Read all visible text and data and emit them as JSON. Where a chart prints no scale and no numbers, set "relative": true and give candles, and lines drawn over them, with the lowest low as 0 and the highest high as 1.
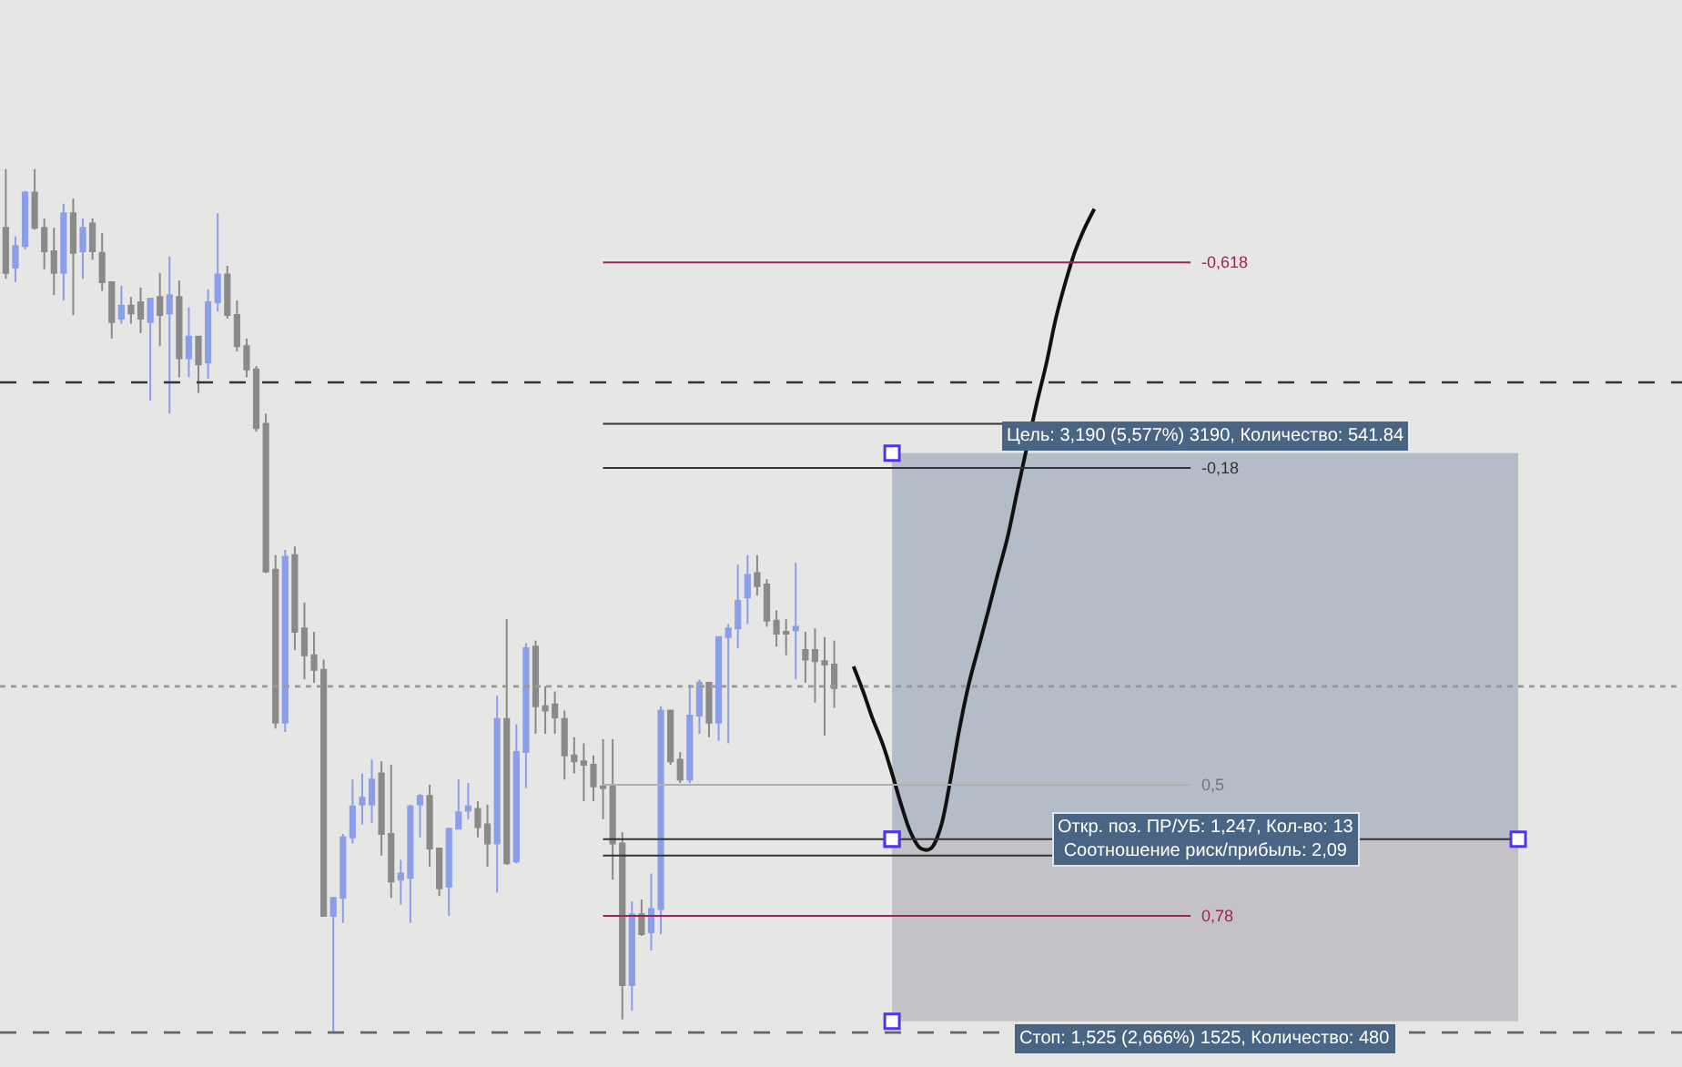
{
  "chart_data": {
    "type": "candlestick",
    "relative": true,
    "grid": false,
    "tick_labels": false,
    "categories": [
      null,
      null,
      null,
      null,
      null,
      null,
      null,
      null,
      null,
      null,
      null,
      null,
      null,
      null,
      null,
      null,
      null,
      null,
      null,
      null,
      null,
      null,
      null,
      null,
      null,
      null,
      null,
      null,
      null,
      null,
      null,
      null,
      null,
      null,
      null,
      null,
      null,
      null,
      null,
      null,
      null,
      null,
      null,
      null,
      null,
      null,
      null,
      null,
      null,
      null,
      null,
      null,
      null,
      null,
      null,
      null,
      null,
      null,
      null,
      null,
      null,
      null,
      null,
      null,
      null,
      null,
      null,
      null,
      null,
      null,
      null,
      null,
      null,
      null,
      null,
      null,
      null,
      null,
      null,
      null,
      null,
      null,
      null,
      null,
      null,
      null,
      null,
      null,
      null,
      null,
      null,
      null,
      null,
      null,
      null,
      null,
      null,
      null,
      null,
      null,
      null,
      null,
      null,
      null,
      null,
      null,
      null,
      null,
      null,
      null,
      null,
      null,
      null,
      null
    ],
    "colors": [
      "#8a8a8a",
      "#8c9ee8",
      "#8c9ee8",
      "#8a8a8a",
      "#8a8a8a",
      "#8a8a8a",
      "#8c9ee8",
      "#8a8a8a",
      "#8c9ee8",
      "#8a8a8a",
      "#8a8a8a",
      "#8a8a8a",
      "#8c9ee8",
      "#8a8a8a",
      "#8a8a8a",
      "#8c9ee8",
      "#8a8a8a",
      "#8c9ee8",
      "#8a8a8a",
      "#8c9ee8",
      "#8a8a8a",
      "#8c9ee8",
      "#8c9ee8",
      "#8a8a8a",
      "#8a8a8a",
      "#8a8a8a",
      "#8a8a8a",
      "#8a8a8a",
      "#8a8a8a",
      "#8c9ee8",
      "#8a8a8a",
      "#8a8a8a",
      "#8a8a8a",
      "#8a8a8a",
      "#8c9ee8",
      "#8c9ee8",
      "#8c9ee8",
      "#8c9ee8",
      "#8c9ee8",
      "#8a8a8a",
      "#8a8a8a",
      "#8c9ee8",
      "#8c9ee8",
      "#8c9ee8",
      "#8a8a8a",
      "#8a8a8a",
      "#8c9ee8",
      "#8c9ee8",
      "#8c9ee8",
      "#8a8a8a",
      "#8a8a8a",
      "#8c9ee8",
      "#8a8a8a",
      "#8c9ee8",
      "#8c9ee8",
      "#8a8a8a",
      "#8a8a8a",
      "#8a8a8a",
      "#8a8a8a",
      "#8a8a8a",
      "#8a8a8a",
      "#8a8a8a",
      "#8a8a8a",
      "#8a8a8a",
      "#8a8a8a",
      "#8c9ee8",
      "#8a8a8a",
      "#8c9ee8",
      "#8c9ee8",
      "#8a8a8a",
      "#8a8a8a",
      "#8c9ee8",
      "#8c9ee8",
      "#8a8a8a",
      "#8c9ee8",
      "#8c9ee8",
      "#8c9ee8",
      "#8c9ee8",
      "#8a8a8a",
      "#8a8a8a",
      "#8a8a8a",
      "#8a8a8a",
      "#8c9ee8",
      "#8a8a8a",
      "#8a8a8a",
      "#8a8a8a",
      "#8a8a8a",
      null,
      null,
      null,
      null,
      null,
      null,
      null,
      null,
      null,
      null,
      null,
      null,
      null,
      null,
      null,
      null,
      null,
      null,
      null,
      null,
      null,
      null,
      null,
      null,
      null,
      null,
      null
    ],
    "ohlc": [
      [
        0.932,
        1.0,
        0.873,
        0.88
      ],
      [
        0.886,
        0.922,
        0.869,
        0.911
      ],
      [
        0.911,
        0.975,
        0.907,
        0.973
      ],
      [
        0.973,
        1.0,
        0.93,
        0.932
      ],
      [
        0.932,
        0.943,
        0.884,
        0.905
      ],
      [
        0.905,
        0.932,
        0.854,
        0.88
      ],
      [
        0.88,
        0.96,
        0.848,
        0.949
      ],
      [
        0.949,
        0.966,
        0.831,
        0.903
      ],
      [
        0.905,
        0.943,
        0.873,
        0.932
      ],
      [
        0.937,
        0.943,
        0.895,
        0.905
      ],
      [
        0.903,
        0.926,
        0.859,
        0.869
      ],
      [
        0.869,
        0.869,
        0.804,
        0.823
      ],
      [
        0.827,
        0.865,
        0.821,
        0.842
      ],
      [
        0.842,
        0.852,
        0.821,
        0.833
      ],
      [
        0.846,
        0.863,
        0.81,
        0.827
      ],
      [
        0.823,
        0.85,
        0.732,
        0.85
      ],
      [
        0.852,
        0.88,
        0.795,
        0.831
      ],
      [
        0.833,
        0.899,
        0.717,
        0.854
      ],
      [
        0.852,
        0.871,
        0.759,
        0.781
      ],
      [
        0.781,
        0.84,
        0.759,
        0.806
      ],
      [
        0.806,
        0.806,
        0.741,
        0.774
      ],
      [
        0.776,
        0.861,
        0.757,
        0.846
      ],
      [
        0.846,
        0.949,
        0.835,
        0.878
      ],
      [
        0.878,
        0.888,
        0.827,
        0.831
      ],
      [
        0.831,
        0.848,
        0.789,
        0.795
      ],
      [
        0.795,
        0.804,
        0.759,
        0.768
      ],
      [
        0.768,
        0.772,
        0.696,
        0.7
      ],
      [
        0.705,
        0.717,
        0.532,
        0.534
      ],
      [
        0.536,
        0.553,
        0.352,
        0.359
      ],
      [
        0.359,
        0.559,
        0.348,
        0.551
      ],
      [
        0.553,
        0.563,
        0.443,
        0.464
      ],
      [
        0.468,
        0.498,
        0.409,
        0.437
      ],
      [
        0.437,
        0.464,
        0.405,
        0.42
      ],
      [
        0.42,
        0.432,
        0.135,
        0.135
      ],
      [
        0.135,
        0.156,
        0.0,
        0.156
      ],
      [
        0.156,
        0.23,
        0.127,
        0.226
      ],
      [
        0.226,
        0.293,
        0.219,
        0.262
      ],
      [
        0.264,
        0.3,
        0.241,
        0.272
      ],
      [
        0.264,
        0.316,
        0.243,
        0.293
      ],
      [
        0.3,
        0.314,
        0.205,
        0.23
      ],
      [
        0.23,
        0.31,
        0.156,
        0.175
      ],
      [
        0.177,
        0.2,
        0.148,
        0.184
      ],
      [
        0.179,
        0.264,
        0.127,
        0.262
      ],
      [
        0.264,
        0.276,
        0.226,
        0.274
      ],
      [
        0.274,
        0.287,
        0.192,
        0.213
      ],
      [
        0.213,
        0.213,
        0.158,
        0.167
      ],
      [
        0.169,
        0.236,
        0.135,
        0.236
      ],
      [
        0.236,
        0.293,
        0.236,
        0.255
      ],
      [
        0.257,
        0.289,
        0.247,
        0.262
      ],
      [
        0.259,
        0.268,
        0.226,
        0.238
      ],
      [
        0.241,
        0.264,
        0.192,
        0.219
      ],
      [
        0.219,
        0.39,
        0.162,
        0.363
      ],
      [
        0.363,
        0.479,
        0.194,
        0.196
      ],
      [
        0.198,
        0.357,
        0.196,
        0.325
      ],
      [
        0.325,
        0.451,
        0.283,
        0.445
      ],
      [
        0.447,
        0.454,
        0.346,
        0.378
      ],
      [
        0.378,
        0.401,
        0.346,
        0.373
      ],
      [
        0.38,
        0.395,
        0.346,
        0.365
      ],
      [
        0.363,
        0.373,
        0.293,
        0.321
      ],
      [
        0.321,
        0.342,
        0.3,
        0.314
      ],
      [
        0.314,
        0.335,
        0.268,
        0.31
      ],
      [
        0.31,
        0.321,
        0.268,
        0.285
      ],
      [
        0.285,
        0.34,
        0.247,
        0.283
      ],
      [
        0.285,
        0.34,
        0.177,
        0.219
      ],
      [
        0.219,
        0.232,
        0.015,
        0.055
      ],
      [
        0.055,
        0.152,
        0.025,
        0.137
      ],
      [
        0.137,
        0.154,
        0.112,
        0.114
      ],
      [
        0.116,
        0.184,
        0.095,
        0.143
      ],
      [
        0.143,
        0.378,
        0.114,
        0.373
      ],
      [
        0.373,
        0.373,
        0.31,
        0.314
      ],
      [
        0.316,
        0.325,
        0.289,
        0.293
      ],
      [
        0.293,
        0.403,
        0.289,
        0.367
      ],
      [
        0.367,
        0.409,
        0.346,
        0.405
      ],
      [
        0.405,
        0.405,
        0.342,
        0.359
      ],
      [
        0.359,
        0.458,
        0.338,
        0.458
      ],
      [
        0.458,
        0.473,
        0.335,
        0.468
      ],
      [
        0.468,
        0.542,
        0.445,
        0.5
      ],
      [
        0.504,
        0.553,
        0.473,
        0.53
      ],
      [
        0.532,
        0.553,
        0.506,
        0.517
      ],
      [
        0.519,
        0.525,
        0.47,
        0.477
      ],
      [
        0.477,
        0.489,
        0.447,
        0.462
      ],
      [
        0.464,
        0.479,
        0.437,
        0.462
      ],
      [
        0.466,
        0.544,
        0.409,
        0.47
      ],
      [
        0.443,
        0.464,
        0.405,
        0.432
      ],
      [
        0.443,
        0.468,
        0.382,
        0.43
      ],
      [
        0.43,
        0.458,
        0.344,
        0.426
      ],
      [
        0.426,
        0.454,
        0.376,
        0.399
      ],
      null,
      null,
      null,
      null,
      null,
      null,
      null,
      null,
      null,
      null,
      null,
      null,
      null,
      null,
      null,
      null,
      null,
      null,
      null,
      null,
      null,
      null,
      null,
      null,
      null,
      null,
      null
    ],
    "series": [
      {
        "type": "line",
        "color": "#111111",
        "values": [
          null,
          null,
          null,
          null,
          null,
          null,
          null,
          null,
          null,
          null,
          null,
          null,
          null,
          null,
          null,
          null,
          null,
          null,
          null,
          null,
          null,
          null,
          null,
          null,
          null,
          null,
          null,
          null,
          null,
          null,
          null,
          null,
          null,
          null,
          null,
          null,
          null,
          null,
          null,
          null,
          null,
          null,
          null,
          null,
          null,
          null,
          null,
          null,
          null,
          null,
          null,
          null,
          null,
          null,
          null,
          null,
          null,
          null,
          null,
          null,
          null,
          null,
          null,
          null,
          null,
          null,
          null,
          null,
          null,
          null,
          null,
          null,
          null,
          null,
          null,
          null,
          null,
          null,
          null,
          null,
          null,
          null,
          null,
          null,
          null,
          null,
          null,
          null,
          0.424,
          0.395,
          0.363,
          0.335,
          0.3,
          0.262,
          0.23,
          0.213,
          0.213,
          0.236,
          0.289,
          0.352,
          0.405,
          0.447,
          0.489,
          0.532,
          0.574,
          0.627,
          null,
          0.728,
          0.774,
          0.827,
          0.869,
          0.905,
          0.932,
          0.954
        ]
      }
    ],
    "ref_lines": [
      {
        "axis": "y",
        "value": 0.892,
        "color": "#a0205a"
      },
      {
        "axis": "y",
        "value": 0.654,
        "color": "#333333"
      },
      {
        "axis": "y",
        "value": 0.287,
        "color": "#b0b0b0"
      },
      {
        "axis": "y",
        "value": 0.135,
        "color": "#a0205a"
      },
      {
        "axis": "y",
        "value": 0.224,
        "color": "#333333"
      },
      {
        "axis": "y",
        "value": 0.705,
        "color": "#333333"
      },
      {
        "axis": "y",
        "value": 0.205,
        "color": "#333333"
      },
      {
        "axis": "y",
        "value": 0.753,
        "color": "#333333",
        "line_style": "dashed"
      },
      {
        "axis": "y",
        "value": 0.401,
        "color": "#999999",
        "line_style": "dotted"
      },
      {
        "axis": "y",
        "value": 0.0,
        "color": "#666666",
        "line_style": "dashed"
      }
    ],
    "annotations": [
      "-0,618",
      "-0,18",
      "0,5",
      "0,78",
      {
        "text": "Откр. поз. ПР/УБ: 1,247, Кол-во: 13\nСоотношение риск/прибыль: 2,09",
        "y": 0.224
      }
    ],
    "bands": [
      {
        "axis": "y",
        "from": 0.224,
        "to": 0.671,
        "label": "Цель: 3,190 (5,577%) 3190, Количество: 541.84",
        "color": "#b4bcc8"
      },
      {
        "axis": "y",
        "from": 0.224,
        "to": 0.013,
        "label": "Стоп: 1,525 (2,666%) 1525, Количество: 480",
        "color": "#c4c2c6"
      }
    ]
  }
}
